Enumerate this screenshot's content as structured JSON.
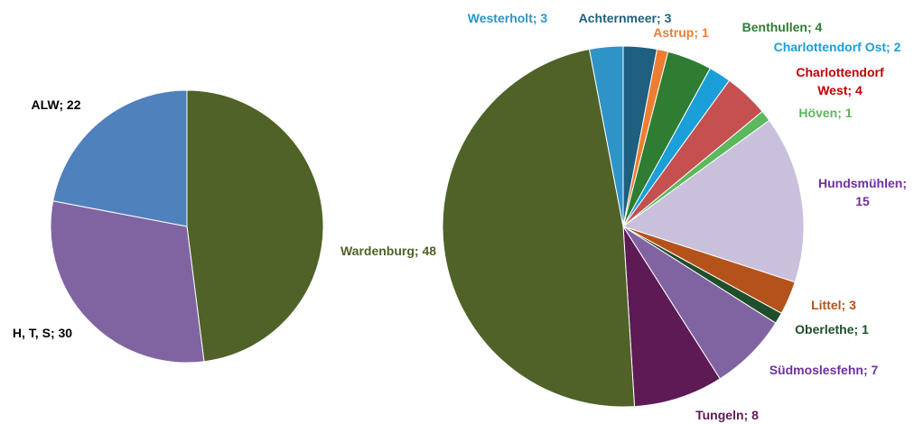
{
  "chart_data": [
    {
      "type": "pie",
      "categories": [
        null,
        "H, T, S",
        "ALW"
      ],
      "values": [
        48,
        30,
        22
      ],
      "colors": [
        "#4f6228",
        "#8064a2",
        "#4f81bd"
      ],
      "label_colors": [
        "#4f6228",
        "#000000",
        "#000000"
      ],
      "label_separator": "; "
    },
    {
      "type": "pie",
      "categories": [
        "Achternmeer",
        "Astrup",
        "Benthullen",
        "Charlottendorf Ost",
        "Charlottendorf West",
        "Höven",
        "Hundsmühlen",
        "Littel",
        "Oberlethe",
        "Südmoslesfehn",
        "Tungeln",
        "Wardenburg",
        "Westerholt"
      ],
      "values": [
        3,
        1,
        4,
        2,
        4,
        1,
        15,
        3,
        1,
        7,
        8,
        48,
        3
      ],
      "colors": [
        "#1f5f7f",
        "#ed7d31",
        "#2e7d32",
        "#1a9fd9",
        "#c55050",
        "#5cb85c",
        "#c9c0dc",
        "#b5521b",
        "#1f4e2a",
        "#8064a2",
        "#5e1a55",
        "#4f6228",
        "#2e94c8"
      ],
      "label_colors": [
        "#1f5f7f",
        "#ed7d31",
        "#2e7d32",
        "#1a9fd9",
        "#c00000",
        "#5cb85c",
        "#7030a0",
        "#b5521b",
        "#1f4e2a",
        "#7030a0",
        "#5e1a55",
        "#4f6228",
        "#2e94c8"
      ],
      "label_separator": "; "
    }
  ]
}
